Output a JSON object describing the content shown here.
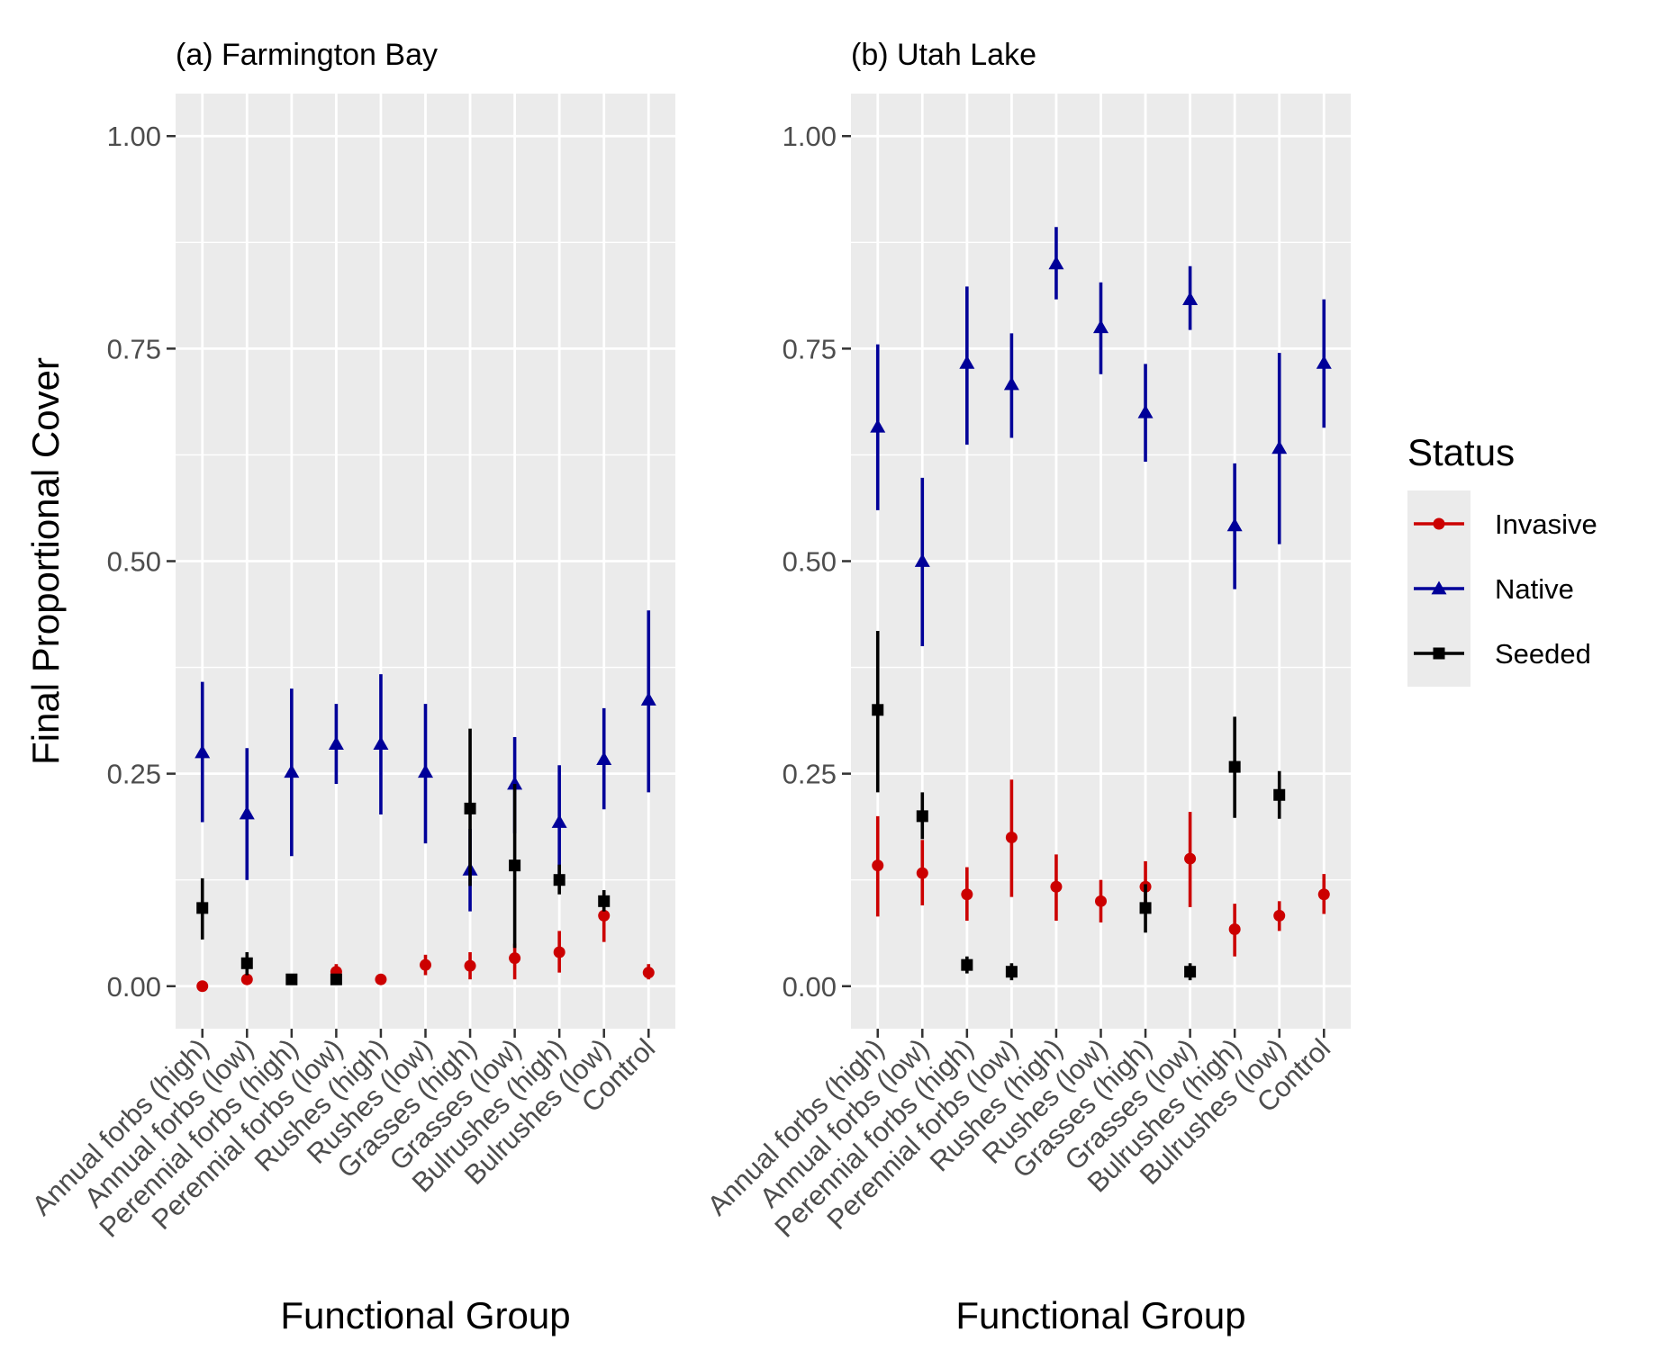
{
  "chart_data": [
    {
      "type": "pointrange",
      "title": "(a) Farmington Bay",
      "xlabel": "Functional Group",
      "ylabel": "Final Proportional Cover",
      "ylim": [
        -0.05,
        1.05
      ],
      "yticks": [
        "0.00",
        "0.25",
        "0.50",
        "0.75",
        "1.00"
      ],
      "grid": true,
      "categories": [
        "Annual forbs (high)",
        "Annual forbs (low)",
        "Perennial forbs (high)",
        "Perennial forbs (low)",
        "Rushes (high)",
        "Rushes (low)",
        "Grasses (high)",
        "Grasses (low)",
        "Bulrushes (high)",
        "Bulrushes (low)",
        "Control"
      ],
      "series": [
        {
          "name": "Invasive",
          "color": "#cc0000",
          "marker": "circle",
          "values": [
            0.0,
            0.008,
            null,
            0.017,
            0.008,
            0.025,
            0.024,
            0.033,
            0.04,
            0.083,
            0.016
          ],
          "lower": [
            0.0,
            0.003,
            null,
            0.008,
            0.002,
            0.013,
            0.008,
            0.008,
            0.016,
            0.052,
            0.008
          ],
          "upper": [
            0.0,
            0.015,
            null,
            0.026,
            0.014,
            0.037,
            0.04,
            0.05,
            0.065,
            0.11,
            0.026
          ]
        },
        {
          "name": "Native",
          "color": "#000099",
          "marker": "triangle",
          "values": [
            0.275,
            0.203,
            0.252,
            0.285,
            0.285,
            0.252,
            0.137,
            0.238,
            0.193,
            0.267,
            0.337
          ],
          "lower": [
            0.193,
            0.125,
            0.153,
            0.238,
            0.202,
            0.168,
            0.088,
            0.18,
            0.13,
            0.208,
            0.228
          ],
          "upper": [
            0.358,
            0.28,
            0.35,
            0.332,
            0.367,
            0.332,
            0.185,
            0.293,
            0.26,
            0.327,
            0.442
          ]
        },
        {
          "name": "Seeded",
          "color": "#000000",
          "marker": "square",
          "values": [
            0.092,
            0.027,
            0.008,
            0.008,
            null,
            null,
            0.209,
            0.142,
            0.125,
            0.1,
            null
          ],
          "lower": [
            0.055,
            0.013,
            0.002,
            0.002,
            null,
            null,
            0.118,
            0.045,
            0.108,
            0.088,
            null
          ],
          "upper": [
            0.127,
            0.04,
            0.014,
            0.014,
            null,
            null,
            0.303,
            0.238,
            0.143,
            0.113,
            null
          ]
        }
      ]
    },
    {
      "type": "pointrange",
      "title": "(b) Utah Lake",
      "xlabel": "Functional Group",
      "ylabel": "",
      "ylim": [
        -0.05,
        1.05
      ],
      "yticks": [
        "0.00",
        "0.25",
        "0.50",
        "0.75",
        "1.00"
      ],
      "grid": true,
      "categories": [
        "Annual forbs (high)",
        "Annual forbs (low)",
        "Perennial forbs (high)",
        "Perennial forbs (low)",
        "Rushes (high)",
        "Rushes (low)",
        "Grasses (high)",
        "Grasses (low)",
        "Bulrushes (high)",
        "Bulrushes (low)",
        "Control"
      ],
      "series": [
        {
          "name": "Invasive",
          "color": "#cc0000",
          "marker": "circle",
          "values": [
            0.142,
            0.133,
            0.108,
            0.175,
            0.117,
            0.1,
            0.117,
            0.15,
            0.067,
            0.083,
            0.108
          ],
          "lower": [
            0.082,
            0.095,
            0.077,
            0.105,
            0.077,
            0.075,
            0.088,
            0.093,
            0.035,
            0.065,
            0.085
          ],
          "upper": [
            0.2,
            0.172,
            0.14,
            0.243,
            0.155,
            0.125,
            0.147,
            0.205,
            0.097,
            0.1,
            0.132
          ]
        },
        {
          "name": "Native",
          "color": "#000099",
          "marker": "triangle",
          "values": [
            0.658,
            0.5,
            0.733,
            0.708,
            0.85,
            0.775,
            0.675,
            0.808,
            0.542,
            0.633,
            0.733
          ],
          "lower": [
            0.56,
            0.4,
            0.637,
            0.645,
            0.808,
            0.72,
            0.617,
            0.772,
            0.467,
            0.52,
            0.657
          ],
          "upper": [
            0.755,
            0.598,
            0.823,
            0.768,
            0.893,
            0.828,
            0.732,
            0.847,
            0.615,
            0.745,
            0.808
          ]
        },
        {
          "name": "Seeded",
          "color": "#000000",
          "marker": "square",
          "values": [
            0.325,
            0.2,
            0.025,
            0.017,
            null,
            null,
            0.092,
            0.017,
            0.258,
            0.225,
            null
          ],
          "lower": [
            0.228,
            0.173,
            0.015,
            0.007,
            null,
            null,
            0.063,
            0.007,
            0.198,
            0.197,
            null
          ],
          "upper": [
            0.418,
            0.228,
            0.035,
            0.027,
            null,
            null,
            0.12,
            0.027,
            0.317,
            0.253,
            null
          ]
        }
      ]
    }
  ],
  "legend": {
    "title": "Status",
    "placement": "right",
    "entries": [
      {
        "label": "Invasive",
        "color": "#cc0000",
        "marker": "circle"
      },
      {
        "label": "Native",
        "color": "#000099",
        "marker": "triangle"
      },
      {
        "label": "Seeded",
        "color": "#000000",
        "marker": "square"
      }
    ]
  },
  "colors": {
    "panel_background": "#ebebeb",
    "grid_major": "#ffffff",
    "tick_text": "#4d4d4d"
  }
}
